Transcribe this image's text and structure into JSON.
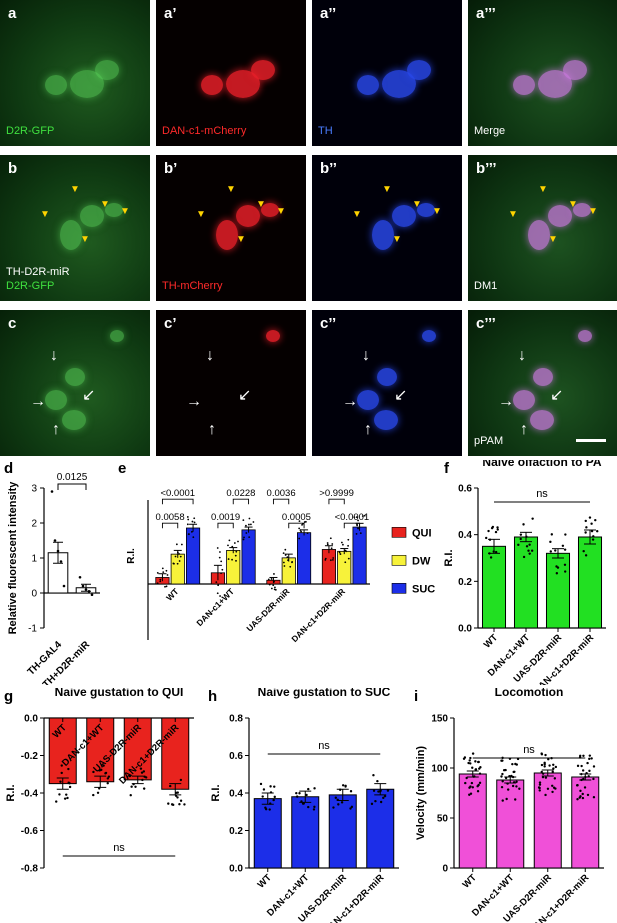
{
  "micrographs": [
    {
      "id": "a",
      "label": "a",
      "caption": [
        "D2R-GFP"
      ],
      "caption_color": "#3fe03f",
      "tone": "green"
    },
    {
      "id": "a1",
      "label": "a’",
      "caption": [
        "DAN-c1-mCherry"
      ],
      "caption_color": "#ff2a2a",
      "tone": "red"
    },
    {
      "id": "a2",
      "label": "a’’",
      "caption": [
        "TH"
      ],
      "caption_color": "#4a7dff",
      "tone": "blue"
    },
    {
      "id": "a3",
      "label": "a’’’",
      "caption": [
        "Merge"
      ],
      "caption_color": "#ffffff",
      "tone": "merge"
    },
    {
      "id": "b",
      "label": "b",
      "caption": [
        "TH-D2R-miR",
        "D2R-GFP"
      ],
      "caption_color": "#3fe03f",
      "caption_first_color": "#ffffff",
      "tone": "green"
    },
    {
      "id": "b1",
      "label": "b’",
      "caption": [
        "TH-mCherry"
      ],
      "caption_color": "#ff2a2a",
      "tone": "red"
    },
    {
      "id": "b2",
      "label": "b’’",
      "caption": [],
      "caption_color": "#4a7dff",
      "tone": "blue"
    },
    {
      "id": "b3",
      "label": "b’’’",
      "caption": [
        "DM1"
      ],
      "caption_color": "#ffffff",
      "tone": "merge"
    },
    {
      "id": "c",
      "label": "c",
      "caption": [],
      "caption_color": "#3fe03f",
      "tone": "green"
    },
    {
      "id": "c1",
      "label": "c’",
      "caption": [],
      "caption_color": "#ff2a2a",
      "tone": "red"
    },
    {
      "id": "c2",
      "label": "c’’",
      "caption": [],
      "caption_color": "#4a7dff",
      "tone": "blue"
    },
    {
      "id": "c3",
      "label": "c’’’",
      "caption": [
        "pPAM"
      ],
      "caption_color": "#ffffff",
      "tone": "merge"
    }
  ],
  "panel_letters": {
    "d": "d",
    "e": "e",
    "f": "f",
    "g": "g",
    "h": "h",
    "i": "i"
  },
  "colors": {
    "qui": "#e8231e",
    "dw": "#f7f23a",
    "suc": "#1c2ee8",
    "green": "#22e022",
    "magenta": "#f050d8",
    "white": "#ffffff"
  },
  "chart_data": [
    {
      "id": "d",
      "type": "bar",
      "title": "",
      "ylabel": "Relative fluorescent intensity",
      "categories": [
        "TH-GAL4",
        "TH+D2R-miR"
      ],
      "values": [
        1.15,
        0.15
      ],
      "errors": [
        0.3,
        0.1
      ],
      "ylim": [
        -1,
        3
      ],
      "yticks": [
        -1,
        0,
        1,
        2,
        3
      ],
      "points": [
        [
          2.9,
          1.5,
          1.2,
          0.9,
          0.2
        ],
        [
          0.45,
          0.2,
          0.1,
          0.05,
          -0.05
        ]
      ],
      "annotations": [
        {
          "text": "0.0125",
          "from": 0,
          "to": 1,
          "y": 3.4
        }
      ],
      "bar_color": "#ffffff"
    },
    {
      "id": "e",
      "type": "bar",
      "ylabel": "R.I.",
      "categories": [
        "WT",
        "DAN-c1+WT",
        "UAS-D2R-miR",
        "DAN-c1+D2R-miR"
      ],
      "series": [
        {
          "name": "QUI",
          "values": [
            0.07,
            0.12,
            0.04,
            0.37
          ],
          "errors": [
            0.04,
            0.08,
            0.03,
            0.04
          ]
        },
        {
          "name": "DW",
          "values": [
            0.32,
            0.36,
            0.28,
            0.35
          ],
          "errors": [
            0.04,
            0.03,
            0.04,
            0.03
          ]
        },
        {
          "name": "SUC",
          "values": [
            0.6,
            0.58,
            0.55,
            0.61
          ],
          "errors": [
            0.04,
            0.03,
            0.03,
            0.04
          ]
        }
      ],
      "ylim": [
        -0.6,
        0.9
      ],
      "annotations": [
        {
          "text": "<0.0001",
          "group": 0,
          "from": 0,
          "to": 2,
          "level": 2
        },
        {
          "text": "0.0058",
          "group": 0,
          "from": 0,
          "to": 1,
          "level": 1
        },
        {
          "text": "0.0228",
          "group": 1,
          "from": 1,
          "to": 2,
          "level": 2
        },
        {
          "text": "0.0019",
          "group": 1,
          "from": 0,
          "to": 1,
          "level": 1
        },
        {
          "text": "0.0036",
          "group": 2,
          "from": 0,
          "to": 1,
          "level": 2
        },
        {
          "text": "0.0005",
          "group": 2,
          "from": 1,
          "to": 2,
          "level": 1
        },
        {
          "text": ">0.9999",
          "group": 3,
          "from": 0,
          "to": 1,
          "level": 2
        },
        {
          "text": "<0.0001",
          "group": 3,
          "from": 1,
          "to": 2,
          "level": 1
        }
      ],
      "legend": [
        "QUI",
        "DW",
        "SUC"
      ]
    },
    {
      "id": "f",
      "type": "bar",
      "title": "Naive olfaction to PA",
      "ylabel": "R.I.",
      "categories": [
        "WT",
        "DAN-c1+WT",
        "UAS-D2R-miR",
        "DAN-c1+D2R-miR"
      ],
      "values": [
        0.35,
        0.39,
        0.32,
        0.39
      ],
      "errors": [
        0.03,
        0.02,
        0.02,
        0.03
      ],
      "ylim": [
        0,
        0.6
      ],
      "yticks": [
        0,
        0.2,
        0.4,
        0.6
      ],
      "yticklabels": [
        "0.0",
        "0.2",
        "0.4",
        "0.6"
      ],
      "sig": "ns",
      "bar_color": "#22e022"
    },
    {
      "id": "g",
      "type": "bar",
      "title": "Naive gustation to QUI",
      "ylabel": "R.I.",
      "categories": [
        "WT",
        "DAN-c1+WT",
        "UAS-D2R-miR",
        "DAN-c1+D2R-miR"
      ],
      "values": [
        -0.35,
        -0.34,
        -0.33,
        -0.38
      ],
      "errors": [
        0.03,
        0.03,
        0.02,
        0.03
      ],
      "ylim": [
        -0.8,
        0
      ],
      "yticks": [
        0,
        -0.2,
        -0.4,
        -0.6,
        -0.8
      ],
      "yticklabels": [
        "0.0",
        "-0.2",
        "-0.4",
        "-0.6",
        "-0.8"
      ],
      "sig": "ns",
      "bar_color": "#e8231e"
    },
    {
      "id": "h",
      "type": "bar",
      "title": "Naive gustation to SUC",
      "ylabel": "R.I.",
      "categories": [
        "WT",
        "DAN-c1+WT",
        "UAS-D2R-miR",
        "DAN-c1+D2R-miR"
      ],
      "values": [
        0.37,
        0.38,
        0.39,
        0.42
      ],
      "errors": [
        0.03,
        0.03,
        0.03,
        0.03
      ],
      "ylim": [
        0,
        0.8
      ],
      "yticks": [
        0,
        0.2,
        0.4,
        0.6,
        0.8
      ],
      "yticklabels": [
        "0.0",
        "0.2",
        "0.4",
        "0.6",
        "0.8"
      ],
      "sig": "ns",
      "bar_color": "#1c2ee8"
    },
    {
      "id": "i",
      "type": "bar",
      "title": "Locomotion",
      "ylabel": "Velocity (mm/min)",
      "categories": [
        "WT",
        "DAN-c1+WT",
        "UAS-D2R-miR",
        "DAN-c1+D2R-miR"
      ],
      "values": [
        94,
        88,
        95,
        91
      ],
      "errors": [
        3,
        3,
        3,
        3
      ],
      "ylim": [
        0,
        150
      ],
      "yticks": [
        0,
        50,
        100,
        150
      ],
      "sig": "ns",
      "bar_color": "#f050d8"
    }
  ]
}
